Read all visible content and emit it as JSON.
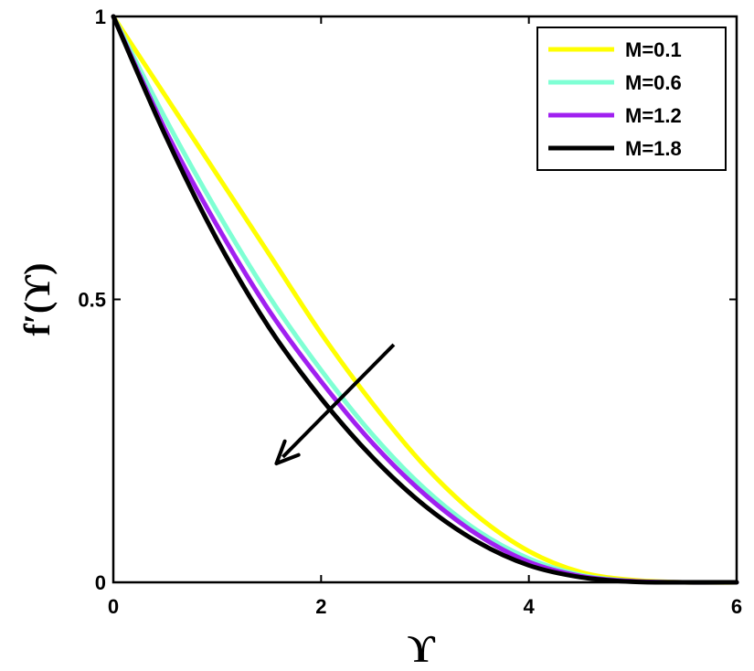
{
  "chart_data": {
    "type": "line",
    "title": "",
    "xlabel": "ϒ",
    "ylabel": "f′(ϒ)",
    "xlim": [
      0,
      6
    ],
    "ylim": [
      0,
      1
    ],
    "xticks": [
      0,
      2,
      4,
      6
    ],
    "yticks": [
      0,
      0.5,
      1
    ],
    "xtick_labels": [
      "0",
      "2",
      "4",
      "6"
    ],
    "ytick_labels": [
      "0",
      "0.5",
      "1"
    ],
    "grid": false,
    "legend_position": "top-right",
    "x": [
      0,
      0.5,
      1,
      1.5,
      2,
      2.5,
      3,
      3.5,
      4,
      4.5,
      5,
      5.5,
      6
    ],
    "series": [
      {
        "name": "M=0.1",
        "color": "#ffff00",
        "values": [
          1.0,
          0.86,
          0.72,
          0.58,
          0.44,
          0.315,
          0.205,
          0.118,
          0.055,
          0.018,
          0.004,
          0.0,
          0.0
        ]
      },
      {
        "name": "M=0.6",
        "color": "#7fffd4",
        "values": [
          1.0,
          0.82,
          0.655,
          0.505,
          0.375,
          0.26,
          0.165,
          0.092,
          0.042,
          0.013,
          0.002,
          0.0,
          0.0
        ]
      },
      {
        "name": "M=1.2",
        "color": "#a020f0",
        "values": [
          1.0,
          0.8,
          0.63,
          0.48,
          0.355,
          0.245,
          0.155,
          0.085,
          0.036,
          0.011,
          0.002,
          0.0,
          0.0
        ]
      },
      {
        "name": "M=1.8",
        "color": "#000000",
        "values": [
          1.0,
          0.79,
          0.605,
          0.45,
          0.325,
          0.22,
          0.135,
          0.072,
          0.03,
          0.009,
          0.001,
          0.0,
          0.0
        ]
      }
    ],
    "annotations": [
      {
        "type": "arrow",
        "from": [
          2.7,
          0.42
        ],
        "to": [
          1.57,
          0.21
        ],
        "meaning": "increasing M"
      }
    ]
  }
}
